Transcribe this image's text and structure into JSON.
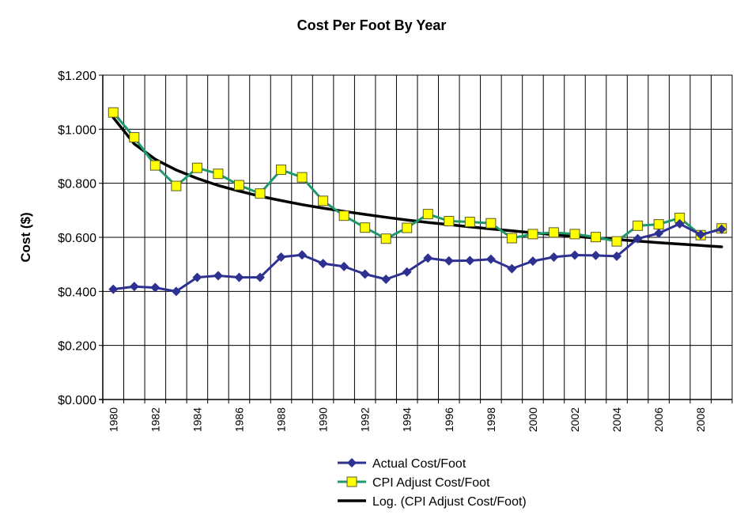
{
  "chart_data": {
    "type": "line",
    "title": "Cost Per Foot By Year",
    "xlabel": "",
    "ylabel": "Cost ($)",
    "ylim": [
      0,
      1.2
    ],
    "yticks": [
      0,
      0.2,
      0.4,
      0.6,
      0.8,
      1.0,
      1.2
    ],
    "ytick_labels": [
      "$0.000",
      "$0.200",
      "$0.400",
      "$0.600",
      "$0.800",
      "$1.000",
      "$1.200"
    ],
    "x": [
      1980,
      1981,
      1982,
      1983,
      1984,
      1985,
      1986,
      1987,
      1988,
      1989,
      1990,
      1991,
      1992,
      1993,
      1994,
      1995,
      1996,
      1997,
      1998,
      1999,
      2000,
      2001,
      2002,
      2003,
      2004,
      2005,
      2006,
      2007,
      2008,
      2009
    ],
    "xtick_labels": [
      "1980",
      "1982",
      "1984",
      "1986",
      "1988",
      "1990",
      "1992",
      "1994",
      "1996",
      "1998",
      "2000",
      "2002",
      "2004",
      "2006",
      "2008"
    ],
    "grid": true,
    "legend_position": "bottom",
    "series": [
      {
        "name": "Actual Cost/Foot",
        "color": "#2e3192",
        "marker": "diamond",
        "values": [
          0.408,
          0.418,
          0.414,
          0.4,
          0.452,
          0.458,
          0.452,
          0.452,
          0.527,
          0.535,
          0.503,
          0.492,
          0.464,
          0.445,
          0.472,
          0.523,
          0.513,
          0.514,
          0.519,
          0.484,
          0.512,
          0.527,
          0.534,
          0.533,
          0.53,
          0.595,
          0.615,
          0.65,
          0.61,
          0.63
        ]
      },
      {
        "name": "CPI Adjust Cost/Foot",
        "color": "#1e9a6a",
        "marker_color": "#ffff00",
        "marker": "square",
        "values": [
          1.062,
          0.97,
          0.866,
          0.79,
          0.857,
          0.835,
          0.793,
          0.762,
          0.85,
          0.822,
          0.735,
          0.68,
          0.636,
          0.595,
          0.635,
          0.686,
          0.66,
          0.657,
          0.652,
          0.597,
          0.612,
          0.618,
          0.612,
          0.601,
          0.585,
          0.643,
          0.648,
          0.672,
          0.608,
          0.633
        ]
      },
      {
        "name": "Log. (CPI Adjust Cost/Foot)",
        "color": "#000000",
        "marker": "none",
        "trend": "logarithmic",
        "values": [
          1.043,
          0.946,
          0.889,
          0.849,
          0.818,
          0.792,
          0.771,
          0.752,
          0.736,
          0.721,
          0.708,
          0.696,
          0.685,
          0.674,
          0.664,
          0.655,
          0.647,
          0.639,
          0.631,
          0.624,
          0.617,
          0.61,
          0.604,
          0.597,
          0.592,
          0.586,
          0.58,
          0.575,
          0.57,
          0.565
        ]
      }
    ]
  }
}
